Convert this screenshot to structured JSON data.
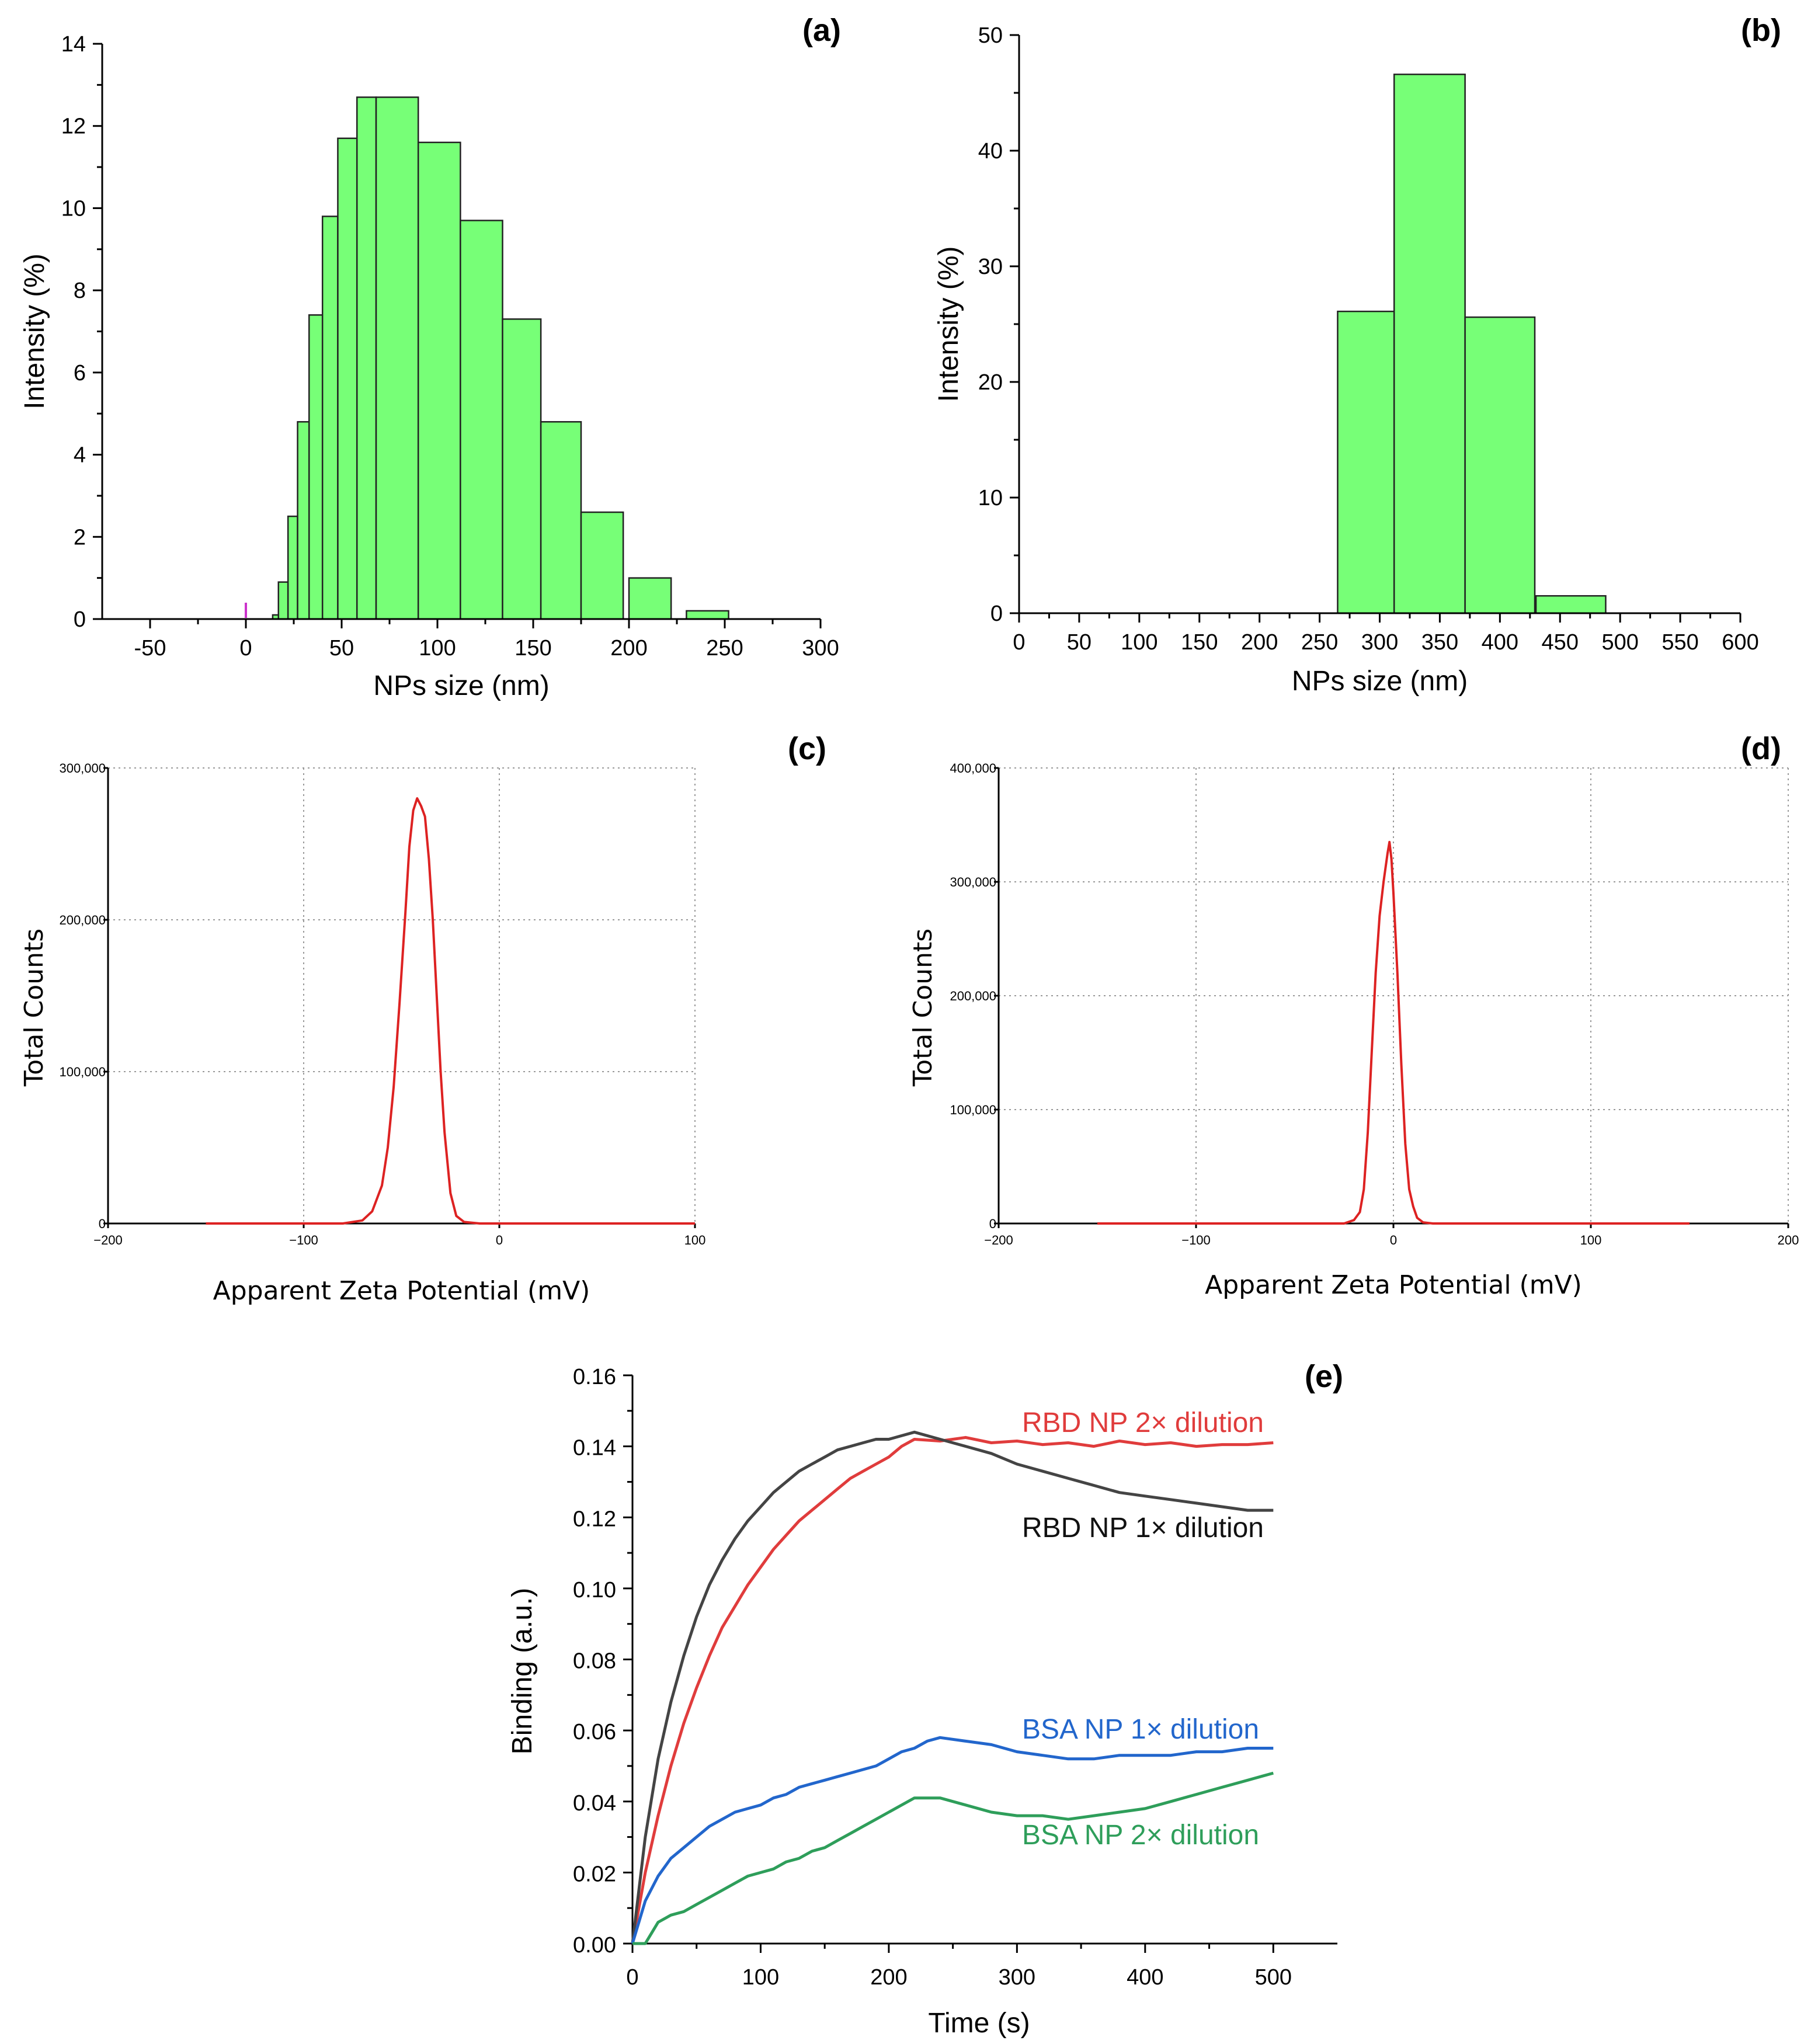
{
  "chart_data": [
    {
      "id": "a",
      "type": "bar",
      "panel_label": "(a)",
      "xlabel": "NPs size (nm)",
      "ylabel": "Intensity (%)",
      "xlim": [
        -75,
        300
      ],
      "ylim": [
        0,
        14
      ],
      "xticks": [
        -50,
        0,
        50,
        100,
        150,
        200,
        250,
        300
      ],
      "yticks": [
        0,
        2,
        4,
        6,
        8,
        10,
        12,
        14
      ],
      "bins": [
        {
          "x0": 14,
          "x1": 17,
          "value": 0.1
        },
        {
          "x0": 17,
          "x1": 22,
          "value": 0.9
        },
        {
          "x0": 22,
          "x1": 27,
          "value": 2.5
        },
        {
          "x0": 27,
          "x1": 33,
          "value": 4.8
        },
        {
          "x0": 33,
          "x1": 40,
          "value": 7.4
        },
        {
          "x0": 40,
          "x1": 48,
          "value": 9.8
        },
        {
          "x0": 48,
          "x1": 58,
          "value": 11.7
        },
        {
          "x0": 58,
          "x1": 68,
          "value": 12.7
        },
        {
          "x0": 68,
          "x1": 90,
          "value": 12.7
        },
        {
          "x0": 90,
          "x1": 112,
          "value": 11.6
        },
        {
          "x0": 112,
          "x1": 134,
          "value": 9.7
        },
        {
          "x0": 134,
          "x1": 154,
          "value": 7.3
        },
        {
          "x0": 154,
          "x1": 175,
          "value": 4.8
        },
        {
          "x0": 175,
          "x1": 197,
          "value": 2.6
        },
        {
          "x0": 200,
          "x1": 222,
          "value": 1.0
        },
        {
          "x0": 230,
          "x1": 252,
          "value": 0.2
        }
      ]
    },
    {
      "id": "b",
      "type": "bar",
      "panel_label": "(b)",
      "xlabel": "NPs size (nm)",
      "ylabel": "Intensity (%)",
      "xlim": [
        0,
        600
      ],
      "ylim": [
        0,
        50
      ],
      "xticks": [
        0,
        50,
        100,
        150,
        200,
        250,
        300,
        350,
        400,
        450,
        500,
        550,
        600
      ],
      "yticks": [
        0,
        10,
        20,
        30,
        40,
        50
      ],
      "bins": [
        {
          "x0": 265,
          "x1": 312,
          "value": 26.1
        },
        {
          "x0": 312,
          "x1": 371,
          "value": 46.6
        },
        {
          "x0": 371,
          "x1": 429,
          "value": 25.6
        },
        {
          "x0": 430,
          "x1": 488,
          "value": 1.5
        }
      ]
    },
    {
      "id": "c",
      "type": "line",
      "panel_label": "(c)",
      "xlabel": "Apparent Zeta Potential (mV)",
      "ylabel": "Total Counts",
      "xlim": [
        -200,
        100
      ],
      "ylim": [
        0,
        300000
      ],
      "xticks": [
        -200,
        -100,
        0,
        100
      ],
      "xtick_labels": [
        "−200",
        "−100",
        "0",
        "100"
      ],
      "yticks": [
        0,
        100000,
        200000,
        300000
      ],
      "ytick_labels": [
        "0",
        "100,000",
        "200,000",
        "300,000"
      ],
      "grid": true,
      "x": [
        -150,
        -80,
        -70,
        -65,
        -60,
        -57,
        -54,
        -51,
        -48,
        -46,
        -44,
        -42,
        -40,
        -38,
        -36,
        -34,
        -32,
        -30,
        -28,
        -25,
        -22,
        -18,
        -10,
        100
      ],
      "y": [
        0,
        0,
        2000,
        8000,
        25000,
        50000,
        90000,
        145000,
        205000,
        248000,
        272000,
        280000,
        275000,
        268000,
        240000,
        200000,
        150000,
        100000,
        60000,
        20000,
        5000,
        1000,
        0,
        0
      ]
    },
    {
      "id": "d",
      "type": "line",
      "panel_label": "(d)",
      "xlabel": "Apparent Zeta Potential (mV)",
      "ylabel": "Total Counts",
      "xlim": [
        -200,
        200
      ],
      "ylim": [
        0,
        400000
      ],
      "xticks": [
        -200,
        -100,
        0,
        100,
        200
      ],
      "xtick_labels": [
        "−200",
        "−100",
        "0",
        "100",
        "200"
      ],
      "yticks": [
        0,
        100000,
        200000,
        300000,
        400000
      ],
      "ytick_labels": [
        "0",
        "100,000",
        "200,000",
        "300,000",
        "400,000"
      ],
      "grid": true,
      "x": [
        -150,
        -25,
        -20,
        -17,
        -15,
        -13,
        -11,
        -9,
        -7,
        -5,
        -3,
        -2,
        -1,
        0,
        2,
        4,
        6,
        8,
        10,
        12,
        15,
        20,
        150
      ],
      "y": [
        0,
        0,
        3000,
        10000,
        30000,
        80000,
        150000,
        220000,
        270000,
        300000,
        325000,
        335000,
        320000,
        290000,
        220000,
        140000,
        70000,
        30000,
        15000,
        5000,
        1000,
        0,
        0
      ]
    },
    {
      "id": "e",
      "type": "line",
      "panel_label": "(e)",
      "xlabel": "Time (s)",
      "ylabel": "Binding (a.u.)",
      "xlim": [
        0,
        550
      ],
      "ylim": [
        0,
        0.16
      ],
      "xticks": [
        0,
        100,
        200,
        300,
        400,
        500
      ],
      "yticks": [
        0.0,
        0.02,
        0.04,
        0.06,
        0.08,
        0.1,
        0.12,
        0.14,
        0.16
      ],
      "ytick_labels": [
        "0.00",
        "0.02",
        "0.04",
        "0.06",
        "0.08",
        "0.10",
        "0.12",
        "0.14",
        "0.16"
      ],
      "series": [
        {
          "name": "RBD NP 2× dilution",
          "color": "#e03c3c",
          "x": [
            0,
            10,
            20,
            30,
            40,
            50,
            60,
            70,
            80,
            90,
            100,
            110,
            120,
            130,
            140,
            150,
            160,
            170,
            180,
            190,
            200,
            210,
            220,
            240,
            260,
            280,
            300,
            320,
            340,
            360,
            380,
            400,
            420,
            440,
            460,
            480,
            500
          ],
          "y": [
            0.0,
            0.02,
            0.036,
            0.05,
            0.062,
            0.072,
            0.081,
            0.089,
            0.095,
            0.101,
            0.106,
            0.111,
            0.115,
            0.119,
            0.122,
            0.125,
            0.128,
            0.131,
            0.133,
            0.135,
            0.137,
            0.14,
            0.142,
            0.1415,
            0.1425,
            0.141,
            0.1415,
            0.1405,
            0.141,
            0.14,
            0.1415,
            0.1405,
            0.141,
            0.14,
            0.1405,
            0.1405,
            0.141
          ]
        },
        {
          "name": "RBD NP 1× dilution",
          "color": "#444444",
          "x": [
            0,
            10,
            20,
            30,
            40,
            50,
            60,
            70,
            80,
            90,
            100,
            110,
            120,
            130,
            140,
            150,
            160,
            170,
            180,
            190,
            200,
            210,
            220,
            240,
            260,
            280,
            300,
            320,
            340,
            360,
            380,
            400,
            420,
            440,
            460,
            480,
            500
          ],
          "y": [
            0.0,
            0.03,
            0.052,
            0.068,
            0.081,
            0.092,
            0.101,
            0.108,
            0.114,
            0.119,
            0.123,
            0.127,
            0.13,
            0.133,
            0.135,
            0.137,
            0.139,
            0.14,
            0.141,
            0.142,
            0.142,
            0.143,
            0.144,
            0.142,
            0.14,
            0.138,
            0.135,
            0.133,
            0.131,
            0.129,
            0.127,
            0.126,
            0.125,
            0.124,
            0.123,
            0.122,
            0.122
          ]
        },
        {
          "name": "BSA NP 1× dilution",
          "color": "#2266cc",
          "x": [
            0,
            10,
            20,
            30,
            40,
            50,
            60,
            70,
            80,
            90,
            100,
            110,
            120,
            130,
            140,
            150,
            160,
            170,
            180,
            190,
            200,
            210,
            220,
            230,
            240,
            260,
            280,
            300,
            320,
            340,
            360,
            380,
            400,
            420,
            440,
            460,
            480,
            500
          ],
          "y": [
            0.0,
            0.012,
            0.019,
            0.024,
            0.027,
            0.03,
            0.033,
            0.035,
            0.037,
            0.038,
            0.039,
            0.041,
            0.042,
            0.044,
            0.045,
            0.046,
            0.047,
            0.048,
            0.049,
            0.05,
            0.052,
            0.054,
            0.055,
            0.057,
            0.058,
            0.057,
            0.056,
            0.054,
            0.053,
            0.052,
            0.052,
            0.053,
            0.053,
            0.053,
            0.054,
            0.054,
            0.055,
            0.055
          ]
        },
        {
          "name": "BSA NP 2× dilution",
          "color": "#2e9e5a",
          "x": [
            0,
            10,
            15,
            20,
            30,
            40,
            50,
            60,
            70,
            80,
            90,
            100,
            110,
            120,
            130,
            140,
            150,
            160,
            170,
            180,
            190,
            200,
            210,
            220,
            240,
            260,
            280,
            300,
            320,
            340,
            360,
            380,
            400,
            420,
            440,
            460,
            480,
            500
          ],
          "y": [
            0.0,
            0.0,
            0.003,
            0.006,
            0.008,
            0.009,
            0.011,
            0.013,
            0.015,
            0.017,
            0.019,
            0.02,
            0.021,
            0.023,
            0.024,
            0.026,
            0.027,
            0.029,
            0.031,
            0.033,
            0.035,
            0.037,
            0.039,
            0.041,
            0.041,
            0.039,
            0.037,
            0.036,
            0.036,
            0.035,
            0.036,
            0.037,
            0.038,
            0.04,
            0.042,
            0.044,
            0.046,
            0.048
          ]
        }
      ]
    }
  ]
}
